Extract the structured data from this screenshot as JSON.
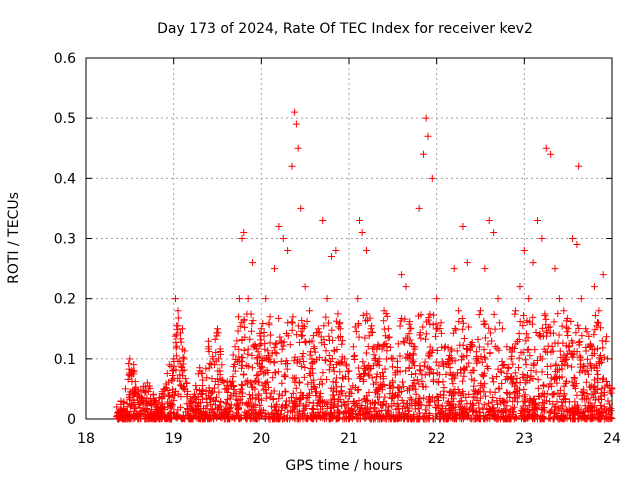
{
  "chart_data": {
    "type": "scatter",
    "title": "Day 173 of 2024, Rate Of TEC Index for receiver kev2",
    "xlabel": "GPS time / hours",
    "ylabel": "ROTI / TECUs",
    "xlim": [
      18,
      24
    ],
    "ylim": [
      0,
      0.6
    ],
    "x_ticks": [
      "18",
      "19",
      "20",
      "21",
      "22",
      "23",
      "24"
    ],
    "y_ticks": [
      "0",
      "0.1",
      "0.2",
      "0.3",
      "0.4",
      "0.5",
      "0.6"
    ],
    "grid": true,
    "marker": "+",
    "color": "#ff0000",
    "series": [
      {
        "name": "ROTI",
        "x": [
          18.35,
          18.4,
          18.45,
          18.5,
          18.55,
          18.6,
          18.7,
          18.8,
          18.9,
          18.95,
          19.0,
          19.02,
          19.05,
          19.1,
          19.15,
          19.2,
          19.3,
          19.4,
          19.45,
          19.5,
          19.55,
          19.6,
          19.7,
          19.75,
          19.78,
          19.8,
          19.85,
          19.9,
          19.95,
          20.0,
          20.05,
          20.1,
          20.15,
          20.2,
          20.25,
          20.3,
          20.35,
          20.38,
          20.4,
          20.42,
          20.45,
          20.5,
          20.55,
          20.6,
          20.65,
          20.7,
          20.75,
          20.8,
          20.85,
          20.9,
          20.95,
          21.0,
          21.05,
          21.1,
          21.12,
          21.15,
          21.2,
          21.25,
          21.3,
          21.35,
          21.4,
          21.45,
          21.5,
          21.55,
          21.6,
          21.65,
          21.7,
          21.75,
          21.8,
          21.85,
          21.88,
          21.9,
          21.95,
          22.0,
          22.05,
          22.1,
          22.15,
          22.2,
          22.25,
          22.3,
          22.35,
          22.4,
          22.45,
          22.5,
          22.55,
          22.6,
          22.65,
          22.7,
          22.75,
          22.8,
          22.85,
          22.9,
          22.95,
          23.0,
          23.05,
          23.1,
          23.15,
          23.2,
          23.25,
          23.3,
          23.35,
          23.4,
          23.45,
          23.5,
          23.55,
          23.6,
          23.62,
          23.65,
          23.7,
          23.75,
          23.8,
          23.85,
          23.9,
          23.95,
          24.0
        ],
        "y": [
          0.02,
          0.03,
          0.05,
          0.1,
          0.08,
          0.04,
          0.06,
          0.03,
          0.05,
          0.09,
          0.1,
          0.2,
          0.18,
          0.15,
          0.06,
          0.03,
          0.08,
          0.12,
          0.1,
          0.15,
          0.09,
          0.05,
          0.12,
          0.2,
          0.3,
          0.31,
          0.2,
          0.26,
          0.1,
          0.15,
          0.2,
          0.17,
          0.25,
          0.32,
          0.3,
          0.28,
          0.42,
          0.51,
          0.49,
          0.45,
          0.35,
          0.22,
          0.18,
          0.12,
          0.15,
          0.33,
          0.2,
          0.27,
          0.28,
          0.15,
          0.1,
          0.08,
          0.12,
          0.2,
          0.33,
          0.31,
          0.28,
          0.15,
          0.1,
          0.12,
          0.18,
          0.15,
          0.1,
          0.08,
          0.24,
          0.22,
          0.15,
          0.12,
          0.35,
          0.44,
          0.5,
          0.47,
          0.4,
          0.2,
          0.16,
          0.12,
          0.1,
          0.25,
          0.18,
          0.32,
          0.26,
          0.12,
          0.1,
          0.18,
          0.25,
          0.33,
          0.31,
          0.2,
          0.15,
          0.12,
          0.1,
          0.18,
          0.22,
          0.28,
          0.2,
          0.26,
          0.33,
          0.3,
          0.45,
          0.44,
          0.25,
          0.2,
          0.18,
          0.15,
          0.3,
          0.29,
          0.42,
          0.2,
          0.15,
          0.12,
          0.22,
          0.18,
          0.24,
          0.1,
          0.05
        ]
      }
    ]
  }
}
